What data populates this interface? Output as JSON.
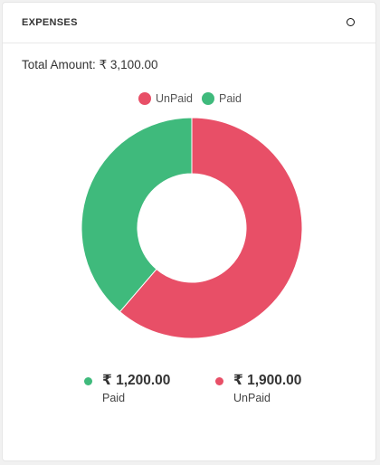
{
  "header": {
    "title": "EXPENSES",
    "action_icon": "circle-icon"
  },
  "total": {
    "label": "Total Amount:",
    "value": "₹ 3,100.00"
  },
  "colors": {
    "unpaid": "#e84f67",
    "paid": "#3fba7c"
  },
  "legend": [
    {
      "label": "UnPaid",
      "color": "#e84f67"
    },
    {
      "label": "Paid",
      "color": "#3fba7c"
    }
  ],
  "chart_data": {
    "type": "pie",
    "categories": [
      "UnPaid",
      "Paid"
    ],
    "values": [
      1900,
      1200
    ],
    "colors": [
      "#e84f67",
      "#3fba7c"
    ],
    "donut": true,
    "legend_position": "top"
  },
  "summary": [
    {
      "amount": "₹ 1,200.00",
      "label": "Paid",
      "color": "#3fba7c"
    },
    {
      "amount": "₹ 1,900.00",
      "label": "UnPaid",
      "color": "#e84f67"
    }
  ]
}
